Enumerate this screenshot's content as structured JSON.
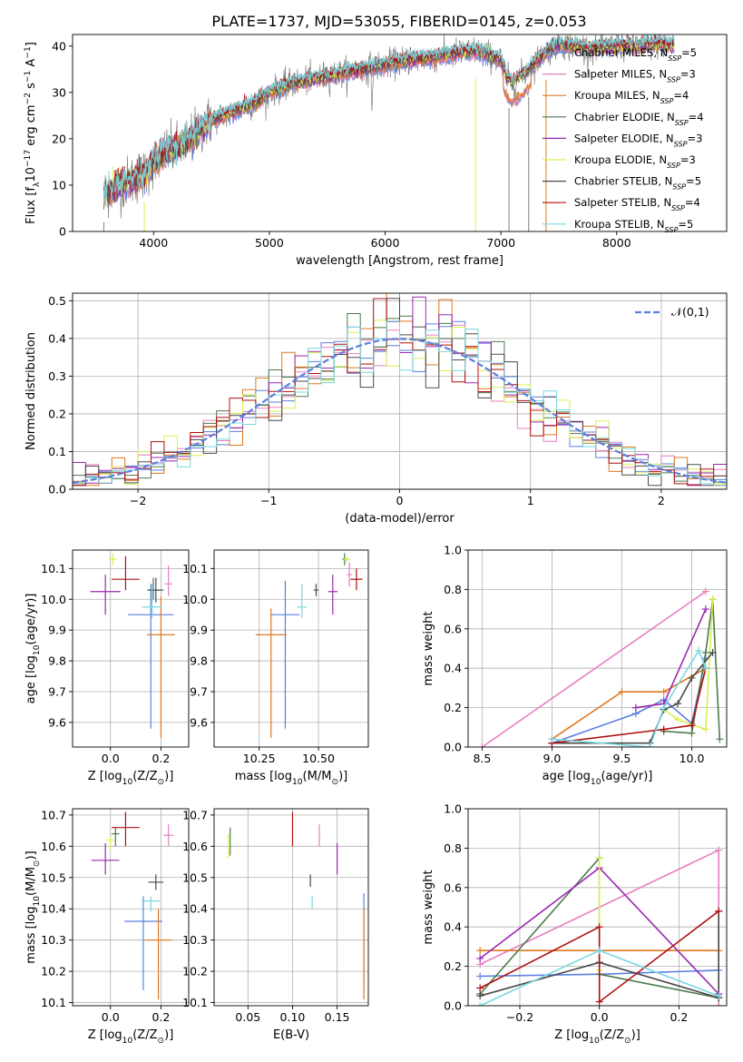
{
  "figure": {
    "title": "PLATE=1737, MJD=53055, FIBERID=0145, z=0.053"
  },
  "colors": {
    "Chabrier MILES": "#5b7fe0",
    "Salpeter MILES": "#e87fc0",
    "Kroupa MILES": "#e07820",
    "Chabrier ELODIE": "#4e7a4e",
    "Salpeter ELODIE": "#9a28b0",
    "Kroupa ELODIE": "#d8f050",
    "Chabrier STELIB": "#4a4a4a",
    "Salpeter STELIB": "#b01010",
    "Kroupa STELIB": "#7ad8e0",
    "data": "#808080",
    "gauss": "#5b7fe0"
  },
  "chart_data": [
    {
      "id": "spectrum",
      "type": "line",
      "xlabel": "wavelength [Angstrom, rest frame]",
      "ylabel": "Flux [f$_\\lambda$10$^{-17}$ erg cm$^{-2}$ s$^{-1}$ A$^{-1}$]",
      "xlim": [
        3300,
        8950
      ],
      "ylim": [
        0,
        42.5
      ],
      "xticks": [
        4000,
        5000,
        6000,
        7000,
        8000
      ],
      "yticks": [
        0,
        10,
        20,
        30,
        40
      ],
      "legend_position": "top-right",
      "legend": [
        {
          "name": "Chabrier MILES",
          "ssp": "5"
        },
        {
          "name": "Salpeter MILES",
          "ssp": "3"
        },
        {
          "name": "Kroupa MILES",
          "ssp": "4"
        },
        {
          "name": "Chabrier ELODIE",
          "ssp": "4"
        },
        {
          "name": "Salpeter ELODIE",
          "ssp": "3"
        },
        {
          "name": "Kroupa ELODIE",
          "ssp": "3"
        },
        {
          "name": "Chabrier STELIB",
          "ssp": "5"
        },
        {
          "name": "Salpeter STELIB",
          "ssp": "4"
        },
        {
          "name": "Kroupa STELIB",
          "ssp": "5"
        }
      ],
      "continuum_points": [
        [
          3570,
          8
        ],
        [
          3700,
          10
        ],
        [
          3800,
          11
        ],
        [
          3900,
          12
        ],
        [
          3950,
          13
        ],
        [
          4000,
          15
        ],
        [
          4100,
          17
        ],
        [
          4200,
          18
        ],
        [
          4300,
          19.5
        ],
        [
          4400,
          22
        ],
        [
          4500,
          24
        ],
        [
          4700,
          26
        ],
        [
          4900,
          28
        ],
        [
          5000,
          30
        ],
        [
          5200,
          32
        ],
        [
          5400,
          33
        ],
        [
          5600,
          34
        ],
        [
          5800,
          35
        ],
        [
          5900,
          35.5
        ],
        [
          6000,
          36
        ],
        [
          6200,
          37
        ],
        [
          6400,
          37.5
        ],
        [
          6600,
          38.5
        ],
        [
          6800,
          39
        ],
        [
          6900,
          38
        ],
        [
          7000,
          37
        ],
        [
          7050,
          33
        ],
        [
          7100,
          32
        ],
        [
          7200,
          34
        ],
        [
          7300,
          36.5
        ],
        [
          7400,
          39
        ],
        [
          7500,
          40.5
        ],
        [
          7600,
          40
        ],
        [
          7800,
          39.5
        ],
        [
          8000,
          40
        ],
        [
          8200,
          40
        ],
        [
          8400,
          40.5
        ],
        [
          8500,
          40
        ]
      ],
      "artifacts_x": [
        3570,
        3920,
        6780,
        7070,
        7240,
        7390
      ]
    },
    {
      "id": "residuals",
      "type": "bar",
      "xlabel": "(data-model)/error",
      "ylabel": "Normed distribution",
      "xlim": [
        -2.5,
        2.5
      ],
      "ylim": [
        0,
        0.52
      ],
      "xticks": [
        -2,
        -1,
        0,
        1,
        2
      ],
      "yticks": [
        0.0,
        0.1,
        0.2,
        0.3,
        0.4,
        0.5
      ],
      "legend_position": "top-right",
      "legend_label": "$\\mathcal{N}(0,1)$",
      "bin_width": 0.1
    },
    {
      "id": "z-age",
      "type": "scatter",
      "xlabel": "Z [log$_{10}$(Z/Z$_\\odot$)]",
      "ylabel": "age  [log$_{10}$(age/yr)]",
      "xlim": [
        -0.15,
        0.31
      ],
      "ylim": [
        9.52,
        10.16
      ],
      "xticks": [
        0.0,
        0.2
      ],
      "yticks": [
        9.6,
        9.7,
        9.8,
        9.9,
        10.0,
        10.1
      ],
      "points": [
        {
          "x": 0.16,
          "y": 9.95,
          "xerr": 0.18,
          "ylow": 9.58,
          "yhigh": 10.05
        },
        {
          "x": 0.23,
          "y": 10.05,
          "xerr": 0.03,
          "ylow": 10.01,
          "yhigh": 10.11
        },
        {
          "x": 0.2,
          "y": 9.885,
          "xerr": 0.11,
          "ylow": 9.55,
          "yhigh": 10.01
        },
        {
          "x": 0.17,
          "y": 10.03,
          "xerr": 0.05,
          "ylow": 10.0,
          "yhigh": 10.07
        },
        {
          "x": -0.02,
          "y": 10.025,
          "xerr": 0.12,
          "ylow": 9.95,
          "yhigh": 10.08
        },
        {
          "x": 0.01,
          "y": 10.13,
          "xerr": 0.03,
          "ylow": 10.11,
          "yhigh": 10.15
        },
        {
          "x": 0.18,
          "y": 10.03,
          "xerr": 0.06,
          "ylow": 9.99,
          "yhigh": 10.07
        },
        {
          "x": 0.06,
          "y": 10.065,
          "xerr": 0.11,
          "ylow": 10.03,
          "yhigh": 10.14
        },
        {
          "x": 0.165,
          "y": 9.975,
          "xerr": 0.08,
          "ylow": 9.94,
          "yhigh": 10.05
        }
      ]
    },
    {
      "id": "mass-age",
      "type": "scatter",
      "xlabel": "mass [log$_{10}$(M/M$_\\odot$)]",
      "ylabel": "",
      "xlim": [
        10.06,
        10.71
      ],
      "ylim": [
        9.52,
        10.16
      ],
      "xticks": [
        10.25,
        10.5
      ],
      "yticks": [
        9.6,
        9.7,
        9.8,
        9.9,
        10.0,
        10.1
      ],
      "points": [
        {
          "x": 10.36,
          "y": 9.95,
          "xerr": 0.12,
          "ylow": 9.58,
          "yhigh": 10.06
        },
        {
          "x": 10.63,
          "y": 10.08,
          "xerr": 0.02,
          "ylow": 10.04,
          "yhigh": 10.12
        },
        {
          "x": 10.3,
          "y": 9.885,
          "xerr": 0.13,
          "ylow": 9.55,
          "yhigh": 9.97
        },
        {
          "x": 10.61,
          "y": 10.13,
          "xerr": 0.02,
          "ylow": 10.11,
          "yhigh": 10.15
        },
        {
          "x": 10.56,
          "y": 10.025,
          "xerr": 0.04,
          "ylow": 9.95,
          "yhigh": 10.08
        },
        {
          "x": 10.62,
          "y": 10.13,
          "xerr": 0.03,
          "ylow": 10.12,
          "yhigh": 10.14
        },
        {
          "x": 10.49,
          "y": 10.03,
          "xerr": 0.02,
          "ylow": 10.01,
          "yhigh": 10.05
        },
        {
          "x": 10.66,
          "y": 10.065,
          "xerr": 0.05,
          "ylow": 10.03,
          "yhigh": 10.1
        },
        {
          "x": 10.43,
          "y": 9.975,
          "xerr": 0.04,
          "ylow": 9.94,
          "yhigh": 10.05
        }
      ]
    },
    {
      "id": "weights-age",
      "type": "line",
      "xlabel": "age  [log$_{10}$(age/yr)]",
      "ylabel": "mass weight",
      "xlim": [
        8.4,
        10.25
      ],
      "ylim": [
        0,
        1
      ],
      "xticks": [
        8.5,
        9.0,
        9.5,
        10.0
      ],
      "yticks": [
        0.0,
        0.2,
        0.4,
        0.6,
        0.8,
        1.0
      ],
      "series": [
        {
          "name": "Chabrier MILES",
          "x": [
            9.0,
            9.6,
            9.8,
            10.0,
            10.1
          ],
          "y": [
            0.02,
            0.17,
            0.24,
            0.12,
            0.45
          ]
        },
        {
          "name": "Salpeter MILES",
          "x": [
            8.5,
            10.1
          ],
          "y": [
            0.0,
            0.79
          ]
        },
        {
          "name": "Kroupa MILES",
          "x": [
            9.0,
            9.5,
            9.8,
            10.1
          ],
          "y": [
            0.04,
            0.28,
            0.28,
            0.4
          ]
        },
        {
          "name": "Chabrier ELODIE",
          "x": [
            9.8,
            10.0,
            10.1,
            10.15,
            10.2
          ],
          "y": [
            0.08,
            0.07,
            0.48,
            0.75,
            0.04
          ]
        },
        {
          "name": "Salpeter ELODIE",
          "x": [
            9.6,
            9.8,
            10.1
          ],
          "y": [
            0.2,
            0.22,
            0.7
          ]
        },
        {
          "name": "Kroupa ELODIE",
          "x": [
            9.8,
            9.9,
            10.1,
            10.15
          ],
          "y": [
            0.19,
            0.14,
            0.09,
            0.75
          ]
        },
        {
          "name": "Chabrier STELIB",
          "x": [
            9.0,
            9.7,
            9.8,
            9.9,
            10.0,
            10.15
          ],
          "y": [
            0.02,
            0.02,
            0.19,
            0.22,
            0.35,
            0.48
          ]
        },
        {
          "name": "Salpeter STELIB",
          "x": [
            9.0,
            9.8,
            10.0,
            10.1
          ],
          "y": [
            0.02,
            0.09,
            0.11,
            0.4
          ]
        },
        {
          "name": "Kroupa STELIB",
          "x": [
            9.0,
            9.7,
            9.8,
            10.05,
            10.1
          ],
          "y": [
            0.04,
            0.0,
            0.2,
            0.49,
            0.4
          ]
        }
      ]
    },
    {
      "id": "z-mass",
      "type": "scatter",
      "xlabel": "Z [log$_{10}$(Z/Z$_\\odot$)]",
      "ylabel": "mass [log$_{10}$(M/M$_\\odot$)]",
      "xlim": [
        -0.15,
        0.31
      ],
      "ylim": [
        10.09,
        10.72
      ],
      "xticks": [
        0.0,
        0.2
      ],
      "yticks": [
        10.1,
        10.2,
        10.3,
        10.4,
        10.5,
        10.6,
        10.7
      ],
      "points": [
        {
          "x": 0.13,
          "y": 10.36,
          "xerr": 0.15,
          "ylow": 10.14,
          "yhigh": 10.44
        },
        {
          "x": 0.23,
          "y": 10.635,
          "xerr": 0.04,
          "ylow": 10.6,
          "yhigh": 10.67
        },
        {
          "x": 0.19,
          "y": 10.3,
          "xerr": 0.11,
          "ylow": 10.11,
          "yhigh": 10.4
        },
        {
          "x": 0.02,
          "y": 10.64,
          "xerr": 0.03,
          "ylow": 10.6,
          "yhigh": 10.66
        },
        {
          "x": -0.02,
          "y": 10.555,
          "xerr": 0.11,
          "ylow": 10.51,
          "yhigh": 10.61
        },
        {
          "x": 0.0,
          "y": 10.62,
          "xerr": 0.03,
          "ylow": 10.59,
          "yhigh": 10.63
        },
        {
          "x": 0.18,
          "y": 10.485,
          "xerr": 0.06,
          "ylow": 10.46,
          "yhigh": 10.51
        },
        {
          "x": 0.06,
          "y": 10.66,
          "xerr": 0.11,
          "ylow": 10.6,
          "yhigh": 10.71
        },
        {
          "x": 0.16,
          "y": 10.425,
          "xerr": 0.07,
          "ylow": 10.39,
          "yhigh": 10.44
        }
      ]
    },
    {
      "id": "ebv-mass",
      "type": "scatter",
      "xlabel": "E(B-V)",
      "ylabel": "",
      "xlim": [
        0.012,
        0.185
      ],
      "ylim": [
        10.09,
        10.72
      ],
      "xticks": [
        0.05,
        0.1,
        0.15
      ],
      "yticks": [
        10.1,
        10.2,
        10.3,
        10.4,
        10.5,
        10.6,
        10.7
      ],
      "points": [
        {
          "x": 0.18,
          "y": 10.36,
          "xerr": 0,
          "ylow": 10.14,
          "yhigh": 10.45
        },
        {
          "x": 0.13,
          "y": 10.63,
          "xerr": 0,
          "ylow": 10.6,
          "yhigh": 10.67
        },
        {
          "x": 0.18,
          "y": 10.3,
          "xerr": 0,
          "ylow": 10.11,
          "yhigh": 10.4
        },
        {
          "x": 0.03,
          "y": 10.62,
          "xerr": 0,
          "ylow": 10.57,
          "yhigh": 10.66
        },
        {
          "x": 0.15,
          "y": 10.56,
          "xerr": 0,
          "ylow": 10.51,
          "yhigh": 10.61
        },
        {
          "x": 0.028,
          "y": 10.6,
          "xerr": 0,
          "ylow": 10.56,
          "yhigh": 10.64
        },
        {
          "x": 0.12,
          "y": 10.49,
          "xerr": 0,
          "ylow": 10.47,
          "yhigh": 10.51
        },
        {
          "x": 0.1,
          "y": 10.66,
          "xerr": 0,
          "ylow": 10.6,
          "yhigh": 10.71
        },
        {
          "x": 0.122,
          "y": 10.43,
          "xerr": 0,
          "ylow": 10.4,
          "yhigh": 10.44
        }
      ]
    },
    {
      "id": "weights-z",
      "type": "line",
      "xlabel": "Z [log$_{10}$(Z/Z$_\\odot$)]",
      "ylabel": "mass weight",
      "xlim": [
        -0.33,
        0.32
      ],
      "ylim": [
        0,
        1
      ],
      "xticks": [
        -0.2,
        0.0,
        0.2
      ],
      "yticks": [
        0.0,
        0.2,
        0.4,
        0.6,
        0.8,
        1.0
      ],
      "series": [
        {
          "name": "Chabrier MILES",
          "x": [
            -0.3,
            0.0,
            0.3
          ],
          "y": [
            0.15,
            0.16,
            0.18
          ]
        },
        {
          "name": "Salpeter MILES",
          "x": [
            -0.3,
            0.3,
            0.3
          ],
          "y": [
            0.21,
            0.79,
            0.0
          ]
        },
        {
          "name": "Kroupa MILES",
          "x": [
            -0.3,
            0.3
          ],
          "y": [
            0.28,
            0.28
          ]
        },
        {
          "name": "Chabrier ELODIE",
          "x": [
            -0.3,
            0.0,
            0.0,
            0.3
          ],
          "y": [
            0.06,
            0.75,
            0.16,
            0.04
          ]
        },
        {
          "name": "Salpeter ELODIE",
          "x": [
            -0.3,
            0.0,
            0.3
          ],
          "y": [
            0.24,
            0.7,
            0.06
          ]
        },
        {
          "name": "Kroupa ELODIE",
          "x": [
            0.0,
            0.0
          ],
          "y": [
            0.75,
            0.18
          ]
        },
        {
          "name": "Chabrier STELIB",
          "x": [
            -0.3,
            0.0,
            0.3,
            0.3
          ],
          "y": [
            0.05,
            0.22,
            0.04,
            0.48
          ]
        },
        {
          "name": "Salpeter STELIB",
          "x": [
            -0.3,
            0.0,
            0.0,
            0.3
          ],
          "y": [
            0.09,
            0.4,
            0.02,
            0.48
          ]
        },
        {
          "name": "Kroupa STELIB",
          "x": [
            -0.3,
            0.0,
            0.3
          ],
          "y": [
            0.0,
            0.28,
            0.05
          ]
        }
      ]
    }
  ]
}
